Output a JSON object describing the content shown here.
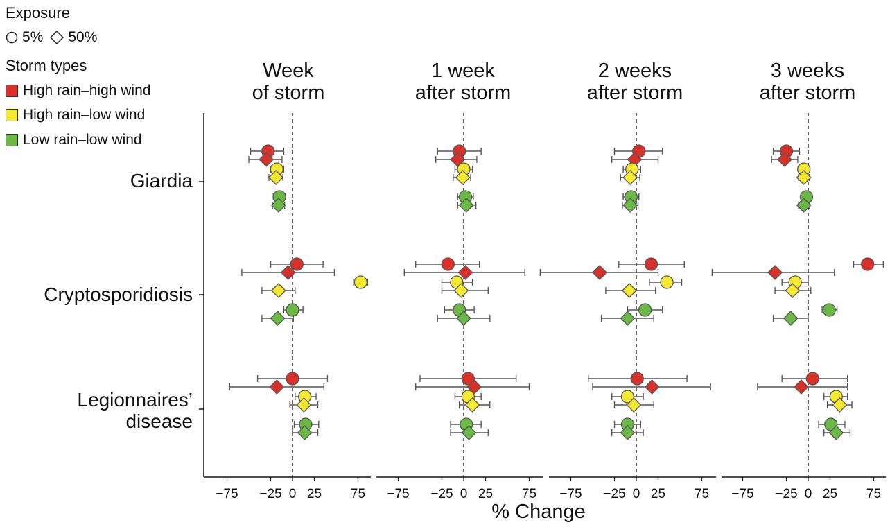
{
  "legend": {
    "exposure_title": "Exposure",
    "exposure_items": [
      {
        "shape": "circle",
        "label": "5%"
      },
      {
        "shape": "diamond",
        "label": "50%"
      }
    ],
    "storm_title": "Storm types",
    "storm_items": [
      {
        "label": "High rain–high wind",
        "color": "#d8312a"
      },
      {
        "label": "High rain–low wind",
        "color": "#f5e830"
      },
      {
        "label": "Low rain–low wind",
        "color": "#69b944"
      }
    ]
  },
  "chart_data": {
    "type": "scatter",
    "xlabel": "% Change",
    "xticks": [
      -75,
      -25,
      0,
      25,
      75
    ],
    "xlim": [
      -110,
      90
    ],
    "grid": false,
    "legend_placement": "top-left",
    "panels": [
      {
        "title_line1": "Week",
        "title_line2": "of storm"
      },
      {
        "title_line1": "1 week",
        "title_line2": "after storm"
      },
      {
        "title_line1": "2 weeks",
        "title_line2": "after storm"
      },
      {
        "title_line1": "3 weeks",
        "title_line2": "after storm"
      }
    ],
    "diseases": [
      {
        "label_line1": "Giardia",
        "label_line2": ""
      },
      {
        "label_line1": "Cryptosporidiosis",
        "label_line2": ""
      },
      {
        "label_line1": "Legionnaires’",
        "label_line2": "disease"
      }
    ],
    "points": [
      {
        "panel": 0,
        "disease": 0,
        "storm": 0,
        "exposure": "5%",
        "value": -28,
        "lo": -48,
        "hi": -10
      },
      {
        "panel": 0,
        "disease": 0,
        "storm": 0,
        "exposure": "50%",
        "value": -30,
        "lo": -50,
        "hi": -12
      },
      {
        "panel": 0,
        "disease": 0,
        "storm": 1,
        "exposure": "5%",
        "value": -18,
        "lo": -25,
        "hi": -10
      },
      {
        "panel": 0,
        "disease": 0,
        "storm": 1,
        "exposure": "50%",
        "value": -19,
        "lo": -27,
        "hi": -11
      },
      {
        "panel": 0,
        "disease": 0,
        "storm": 2,
        "exposure": "5%",
        "value": -15,
        "lo": -22,
        "hi": -8
      },
      {
        "panel": 0,
        "disease": 0,
        "storm": 2,
        "exposure": "50%",
        "value": -16,
        "lo": -23,
        "hi": -9
      },
      {
        "panel": 0,
        "disease": 1,
        "storm": 0,
        "exposure": "5%",
        "value": 5,
        "lo": -25,
        "hi": 35
      },
      {
        "panel": 0,
        "disease": 1,
        "storm": 0,
        "exposure": "50%",
        "value": -5,
        "lo": -58,
        "hi": 48
      },
      {
        "panel": 0,
        "disease": 1,
        "storm": 1,
        "exposure": "5%",
        "value": 78,
        "lo": 70,
        "hi": 86
      },
      {
        "panel": 0,
        "disease": 1,
        "storm": 1,
        "exposure": "50%",
        "value": -16,
        "lo": -35,
        "hi": 3
      },
      {
        "panel": 0,
        "disease": 1,
        "storm": 2,
        "exposure": "5%",
        "value": 0,
        "lo": -10,
        "hi": 12
      },
      {
        "panel": 0,
        "disease": 1,
        "storm": 2,
        "exposure": "50%",
        "value": -17,
        "lo": -35,
        "hi": 1
      },
      {
        "panel": 0,
        "disease": 2,
        "storm": 0,
        "exposure": "5%",
        "value": 0,
        "lo": -40,
        "hi": 40
      },
      {
        "panel": 0,
        "disease": 2,
        "storm": 0,
        "exposure": "50%",
        "value": -18,
        "lo": -72,
        "hi": 36
      },
      {
        "panel": 0,
        "disease": 2,
        "storm": 1,
        "exposure": "5%",
        "value": 14,
        "lo": 3,
        "hi": 27
      },
      {
        "panel": 0,
        "disease": 2,
        "storm": 1,
        "exposure": "50%",
        "value": 13,
        "lo": -3,
        "hi": 29
      },
      {
        "panel": 0,
        "disease": 2,
        "storm": 2,
        "exposure": "5%",
        "value": 15,
        "lo": 2,
        "hi": 30
      },
      {
        "panel": 0,
        "disease": 2,
        "storm": 2,
        "exposure": "50%",
        "value": 14,
        "lo": 0,
        "hi": 29
      },
      {
        "panel": 1,
        "disease": 0,
        "storm": 0,
        "exposure": "5%",
        "value": -5,
        "lo": -30,
        "hi": 20
      },
      {
        "panel": 1,
        "disease": 0,
        "storm": 0,
        "exposure": "50%",
        "value": -7,
        "lo": -32,
        "hi": 15
      },
      {
        "panel": 1,
        "disease": 0,
        "storm": 1,
        "exposure": "5%",
        "value": 0,
        "lo": -10,
        "hi": 10
      },
      {
        "panel": 1,
        "disease": 0,
        "storm": 1,
        "exposure": "50%",
        "value": -1,
        "lo": -12,
        "hi": 8
      },
      {
        "panel": 1,
        "disease": 0,
        "storm": 2,
        "exposure": "5%",
        "value": 2,
        "lo": -7,
        "hi": 11
      },
      {
        "panel": 1,
        "disease": 0,
        "storm": 2,
        "exposure": "50%",
        "value": 3,
        "lo": -7,
        "hi": 14
      },
      {
        "panel": 1,
        "disease": 1,
        "storm": 0,
        "exposure": "5%",
        "value": -18,
        "lo": -55,
        "hi": 18
      },
      {
        "panel": 1,
        "disease": 1,
        "storm": 0,
        "exposure": "50%",
        "value": 2,
        "lo": -68,
        "hi": 70
      },
      {
        "panel": 1,
        "disease": 1,
        "storm": 1,
        "exposure": "5%",
        "value": -8,
        "lo": -25,
        "hi": 10
      },
      {
        "panel": 1,
        "disease": 1,
        "storm": 1,
        "exposure": "50%",
        "value": -3,
        "lo": -25,
        "hi": 28
      },
      {
        "panel": 1,
        "disease": 1,
        "storm": 2,
        "exposure": "5%",
        "value": -5,
        "lo": -22,
        "hi": 12
      },
      {
        "panel": 1,
        "disease": 1,
        "storm": 2,
        "exposure": "50%",
        "value": 0,
        "lo": -30,
        "hi": 30
      },
      {
        "panel": 1,
        "disease": 2,
        "storm": 0,
        "exposure": "5%",
        "value": 5,
        "lo": -50,
        "hi": 60
      },
      {
        "panel": 1,
        "disease": 2,
        "storm": 0,
        "exposure": "50%",
        "value": 12,
        "lo": -55,
        "hi": 75
      },
      {
        "panel": 1,
        "disease": 2,
        "storm": 1,
        "exposure": "5%",
        "value": 5,
        "lo": -10,
        "hi": 20
      },
      {
        "panel": 1,
        "disease": 2,
        "storm": 1,
        "exposure": "50%",
        "value": 10,
        "lo": -5,
        "hi": 30
      },
      {
        "panel": 1,
        "disease": 2,
        "storm": 2,
        "exposure": "5%",
        "value": 3,
        "lo": -15,
        "hi": 20
      },
      {
        "panel": 1,
        "disease": 2,
        "storm": 2,
        "exposure": "50%",
        "value": 6,
        "lo": -15,
        "hi": 28
      },
      {
        "panel": 2,
        "disease": 0,
        "storm": 0,
        "exposure": "5%",
        "value": 3,
        "lo": -25,
        "hi": 30
      },
      {
        "panel": 2,
        "disease": 0,
        "storm": 0,
        "exposure": "50%",
        "value": -2,
        "lo": -28,
        "hi": 25
      },
      {
        "panel": 2,
        "disease": 0,
        "storm": 1,
        "exposure": "5%",
        "value": -5,
        "lo": -15,
        "hi": 5
      },
      {
        "panel": 2,
        "disease": 0,
        "storm": 1,
        "exposure": "50%",
        "value": -7,
        "lo": -18,
        "hi": 4
      },
      {
        "panel": 2,
        "disease": 0,
        "storm": 2,
        "exposure": "5%",
        "value": -6,
        "lo": -15,
        "hi": 3
      },
      {
        "panel": 2,
        "disease": 0,
        "storm": 2,
        "exposure": "50%",
        "value": -7,
        "lo": -16,
        "hi": 2
      },
      {
        "panel": 2,
        "disease": 1,
        "storm": 0,
        "exposure": "5%",
        "value": 17,
        "lo": -20,
        "hi": 55
      },
      {
        "panel": 2,
        "disease": 1,
        "storm": 0,
        "exposure": "50%",
        "value": -42,
        "lo": -110,
        "hi": 25
      },
      {
        "panel": 2,
        "disease": 1,
        "storm": 1,
        "exposure": "5%",
        "value": 35,
        "lo": 15,
        "hi": 52
      },
      {
        "panel": 2,
        "disease": 1,
        "storm": 1,
        "exposure": "50%",
        "value": -8,
        "lo": -35,
        "hi": 22
      },
      {
        "panel": 2,
        "disease": 1,
        "storm": 2,
        "exposure": "5%",
        "value": 10,
        "lo": -10,
        "hi": 30
      },
      {
        "panel": 2,
        "disease": 1,
        "storm": 2,
        "exposure": "50%",
        "value": -10,
        "lo": -40,
        "hi": 20
      },
      {
        "panel": 2,
        "disease": 2,
        "storm": 0,
        "exposure": "5%",
        "value": 1,
        "lo": -55,
        "hi": 58
      },
      {
        "panel": 2,
        "disease": 2,
        "storm": 0,
        "exposure": "50%",
        "value": 18,
        "lo": -50,
        "hi": 85
      },
      {
        "panel": 2,
        "disease": 2,
        "storm": 1,
        "exposure": "5%",
        "value": -10,
        "lo": -28,
        "hi": 8
      },
      {
        "panel": 2,
        "disease": 2,
        "storm": 1,
        "exposure": "50%",
        "value": -3,
        "lo": -25,
        "hi": 20
      },
      {
        "panel": 2,
        "disease": 2,
        "storm": 2,
        "exposure": "5%",
        "value": -10,
        "lo": -25,
        "hi": 5
      },
      {
        "panel": 2,
        "disease": 2,
        "storm": 2,
        "exposure": "50%",
        "value": -10,
        "lo": -28,
        "hi": 8
      },
      {
        "panel": 3,
        "disease": 0,
        "storm": 0,
        "exposure": "5%",
        "value": -25,
        "lo": -40,
        "hi": -10
      },
      {
        "panel": 3,
        "disease": 0,
        "storm": 0,
        "exposure": "50%",
        "value": -27,
        "lo": -42,
        "hi": -12
      },
      {
        "panel": 3,
        "disease": 0,
        "storm": 1,
        "exposure": "5%",
        "value": -5,
        "lo": -10,
        "hi": 1
      },
      {
        "panel": 3,
        "disease": 0,
        "storm": 1,
        "exposure": "50%",
        "value": -5,
        "lo": -11,
        "hi": 1
      },
      {
        "panel": 3,
        "disease": 0,
        "storm": 2,
        "exposure": "5%",
        "value": -2,
        "lo": -7,
        "hi": 3
      },
      {
        "panel": 3,
        "disease": 0,
        "storm": 2,
        "exposure": "50%",
        "value": -5,
        "lo": -11,
        "hi": 1
      },
      {
        "panel": 3,
        "disease": 1,
        "storm": 0,
        "exposure": "5%",
        "value": 68,
        "lo": 52,
        "hi": 86
      },
      {
        "panel": 3,
        "disease": 1,
        "storm": 0,
        "exposure": "50%",
        "value": -38,
        "lo": -110,
        "hi": 30
      },
      {
        "panel": 3,
        "disease": 1,
        "storm": 1,
        "exposure": "5%",
        "value": -15,
        "lo": -30,
        "hi": 0
      },
      {
        "panel": 3,
        "disease": 1,
        "storm": 1,
        "exposure": "50%",
        "value": -18,
        "lo": -38,
        "hi": 3
      },
      {
        "panel": 3,
        "disease": 1,
        "storm": 2,
        "exposure": "5%",
        "value": 24,
        "lo": 16,
        "hi": 33
      },
      {
        "panel": 3,
        "disease": 1,
        "storm": 2,
        "exposure": "50%",
        "value": -20,
        "lo": -40,
        "hi": 0
      },
      {
        "panel": 3,
        "disease": 2,
        "storm": 0,
        "exposure": "5%",
        "value": 5,
        "lo": -30,
        "hi": 45
      },
      {
        "panel": 3,
        "disease": 2,
        "storm": 0,
        "exposure": "50%",
        "value": -8,
        "lo": -58,
        "hi": 45
      },
      {
        "panel": 3,
        "disease": 2,
        "storm": 1,
        "exposure": "5%",
        "value": 32,
        "lo": 18,
        "hi": 45
      },
      {
        "panel": 3,
        "disease": 2,
        "storm": 1,
        "exposure": "50%",
        "value": 36,
        "lo": 22,
        "hi": 50
      },
      {
        "panel": 3,
        "disease": 2,
        "storm": 2,
        "exposure": "5%",
        "value": 26,
        "lo": 12,
        "hi": 42
      },
      {
        "panel": 3,
        "disease": 2,
        "storm": 2,
        "exposure": "50%",
        "value": 32,
        "lo": 18,
        "hi": 48
      }
    ]
  }
}
